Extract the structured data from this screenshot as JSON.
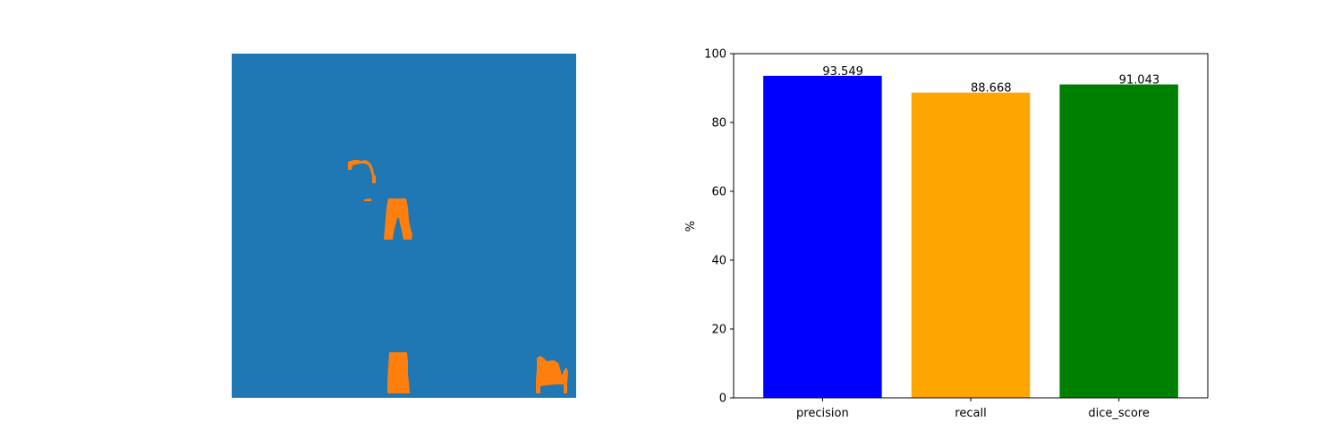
{
  "mask_panel": {
    "background_color": "#1f77b4",
    "foreground_color": "#ff7f0e",
    "axis_visible": false
  },
  "chart_data": {
    "type": "bar",
    "title": "",
    "xlabel": "",
    "ylabel": "%",
    "categories": [
      "precision",
      "recall",
      "dice_score"
    ],
    "values": [
      93.549,
      88.668,
      91.043
    ],
    "value_labels": [
      "93.549",
      "88.668",
      "91.043"
    ],
    "colors": [
      "#0000ff",
      "#ffa500",
      "#008000"
    ],
    "ylim": [
      0,
      100
    ],
    "yticks": [
      0,
      20,
      40,
      60,
      80,
      100
    ],
    "ytick_labels": [
      "0",
      "20",
      "40",
      "60",
      "80",
      "100"
    ],
    "grid": false,
    "legend": "none"
  }
}
